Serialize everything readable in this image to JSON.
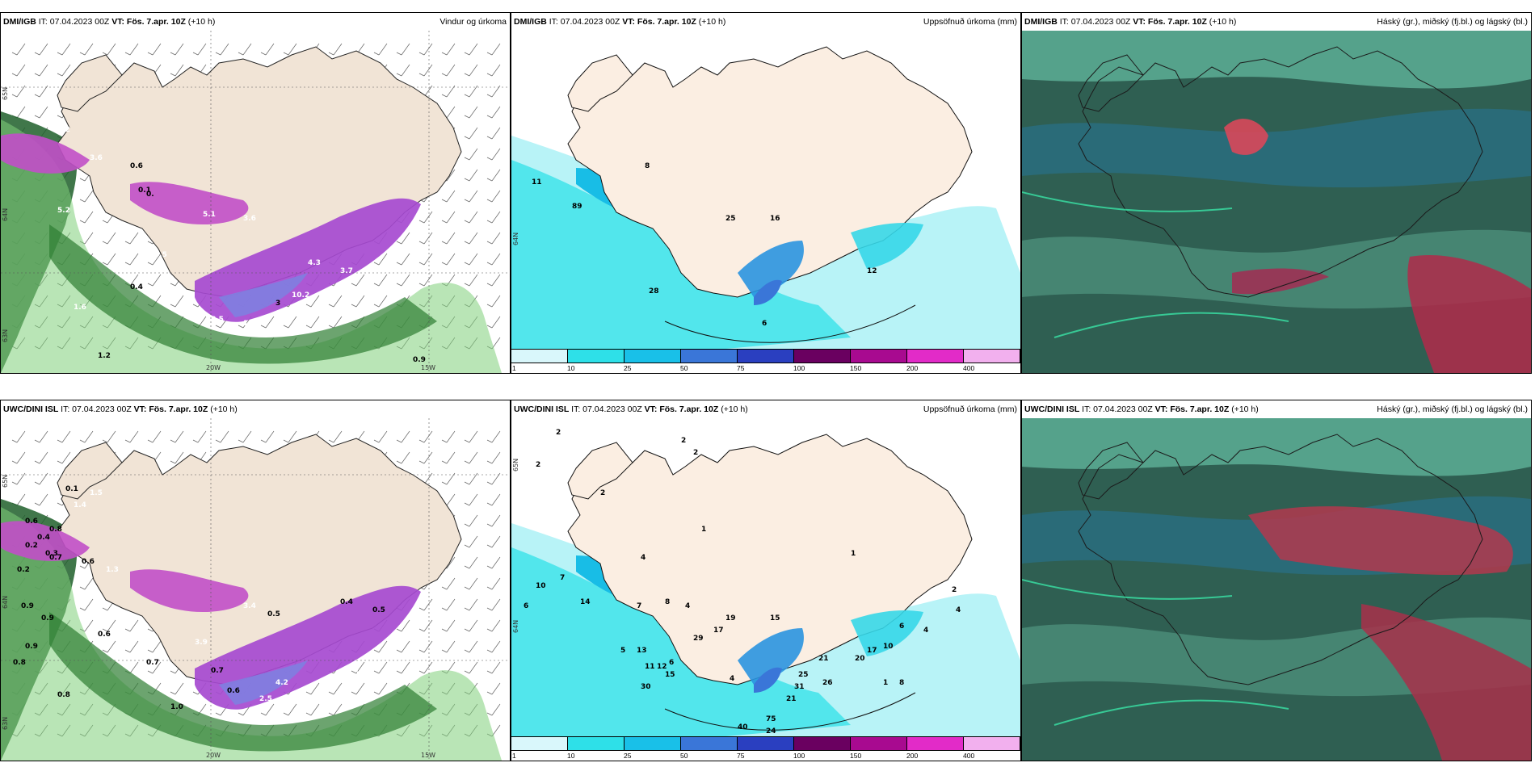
{
  "panels": [
    {
      "id": "p1",
      "source": "DMI/IGB",
      "it": "IT: 07.04.2023 00Z",
      "vt": "VT: Fös. 7.apr. 10Z",
      "lead": "(+10 h)",
      "title": "Vindur og úrkoma",
      "type": "wind",
      "labels": [
        "4.2",
        "3.6",
        "0.6",
        "0.1",
        "0.",
        "5.2",
        "4.1",
        "5.1",
        "3.6",
        "4.5",
        "0.4",
        "4.3",
        "3.7",
        "10.2",
        "3",
        "4.7",
        "8.5",
        "13.7",
        "1.6",
        "1.2",
        "0.9"
      ],
      "axis": [
        "20W",
        "15W",
        "65N",
        "64N",
        "63N"
      ]
    },
    {
      "id": "p2",
      "source": "DMI/IGB",
      "it": "IT: 07.04.2023 00Z",
      "vt": "VT: Fös. 7.apr. 10Z",
      "lead": "(+10 h)",
      "title": "Uppsöfnuð úrkoma (mm)",
      "type": "precip",
      "labels": [
        "8",
        "11",
        "89",
        "25",
        "16",
        "28",
        "6",
        "12"
      ],
      "axis": [
        "64N"
      ]
    },
    {
      "id": "p3",
      "source": "DMI/IGB",
      "it": "IT: 07.04.2023 00Z",
      "vt": "VT: Fös. 7.apr. 10Z",
      "lead": "(+10 h)",
      "title": "Háský (gr.), miðský (fj.bl.) og lágský (bl.)",
      "type": "cloud",
      "labels": [],
      "axis": []
    },
    {
      "id": "p4",
      "source": "UWC/DINI ISL",
      "it": "IT: 07.04.2023 00Z",
      "vt": "VT: Fös. 7.apr. 10Z",
      "lead": "(+10 h)",
      "title": "",
      "type": "wind",
      "labels": [
        "0.1",
        "1.5",
        "1.4",
        "0.6",
        "0.8",
        "0.4",
        "0.2",
        "0.3",
        "0.6",
        "0.2",
        "0.7",
        "1.3",
        "0.9",
        "0.6",
        "0.9",
        "3.4",
        "3.9",
        "0.5",
        "0.7",
        "0.4",
        "0.5",
        "4.2",
        "2.5",
        "3.8",
        "5.3",
        "0.7",
        "0.6",
        "0.9",
        "0.8",
        "0.8",
        "1.0"
      ],
      "axis": [
        "20W",
        "15W",
        "65N",
        "64N",
        "63N"
      ]
    },
    {
      "id": "p5",
      "source": "UWC/DINI ISL",
      "it": "IT: 07.04.2023 00Z",
      "vt": "VT: Fös. 7.apr. 10Z",
      "lead": "(+10 h)",
      "title": "Uppsöfnuð úrkoma (mm)",
      "type": "precip",
      "labels": [
        "2",
        "2",
        "2",
        "2",
        "2",
        "1",
        "1",
        "10",
        "7",
        "6",
        "14",
        "4",
        "8",
        "7",
        "4",
        "19",
        "17",
        "29",
        "15",
        "5",
        "13",
        "6",
        "11",
        "12",
        "15",
        "30",
        "4",
        "40",
        "75",
        "24",
        "21",
        "31",
        "25",
        "21",
        "26",
        "20",
        "17",
        "10",
        "6",
        "4",
        "8",
        "1",
        "4",
        "2"
      ],
      "axis": [
        "64N",
        "65N"
      ]
    },
    {
      "id": "p6",
      "source": "UWC/DINI ISL",
      "it": "IT: 07.04.2023 00Z",
      "vt": "VT: Fös. 7.apr. 10Z",
      "lead": "(+10 h)",
      "title": "Háský (gr.), miðský (fj.bl.) og lágský (bl.)",
      "type": "cloud",
      "labels": [],
      "axis": []
    }
  ],
  "colorbar": {
    "ticks": [
      "1",
      "10",
      "25",
      "50",
      "75",
      "100",
      "150",
      "200",
      "400"
    ],
    "colors": [
      "#d9f7fb",
      "#2ee0e8",
      "#19c0e8",
      "#3a76d8",
      "#2a3fc0",
      "#6a0060",
      "#a80a90",
      "#e22bc8",
      "#f2b0ee"
    ]
  }
}
